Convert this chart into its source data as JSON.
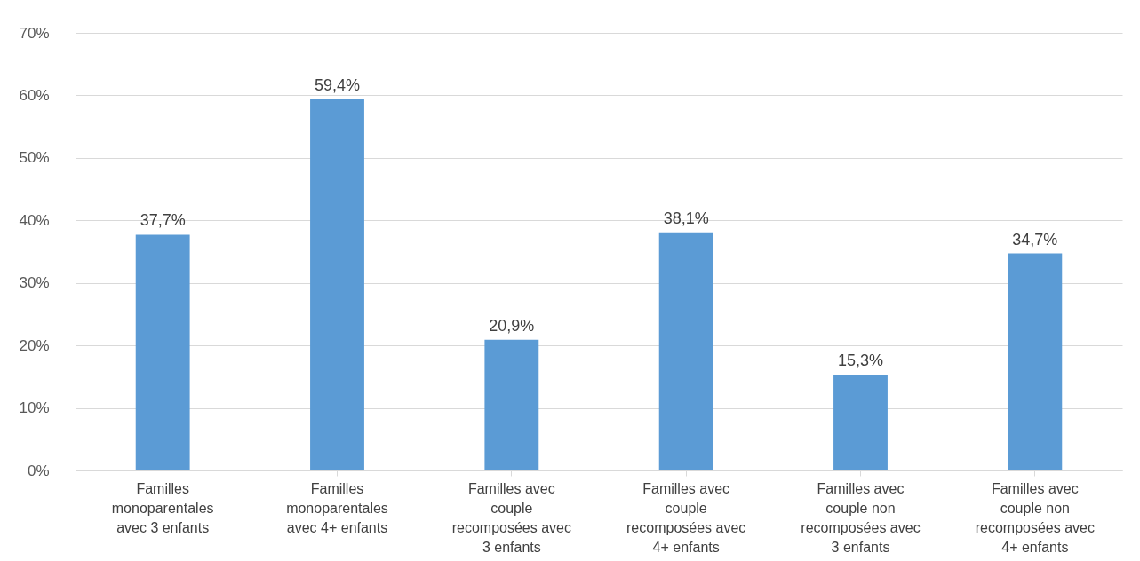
{
  "chart_data": {
    "type": "bar",
    "categories": [
      "Familles monoparentales avec 3 enfants",
      "Familles monoparentales avec 4+ enfants",
      "Familles avec couple recomposées avec 3 enfants",
      "Familles avec couple recomposées avec 4+ enfants",
      "Familles avec couple non recomposées avec 3 enfants",
      "Familles avec couple non recomposées avec 4+ enfants"
    ],
    "values": [
      37.7,
      59.4,
      20.9,
      38.1,
      15.3,
      34.7
    ],
    "value_labels": [
      "37,7%",
      "59,4%",
      "20,9%",
      "38,1%",
      "15,3%",
      "34,7%"
    ],
    "color": "#5b9bd5",
    "ylim": [
      0,
      70
    ],
    "yticks": [
      {
        "value": 0,
        "label": "0%"
      },
      {
        "value": 10,
        "label": "10%"
      },
      {
        "value": 20,
        "label": "20%"
      },
      {
        "value": 30,
        "label": "30%"
      },
      {
        "value": 40,
        "label": "40%"
      },
      {
        "value": 50,
        "label": "50%"
      },
      {
        "value": 60,
        "label": "60%"
      },
      {
        "value": 70,
        "label": "70%"
      }
    ],
    "grid": "y"
  }
}
